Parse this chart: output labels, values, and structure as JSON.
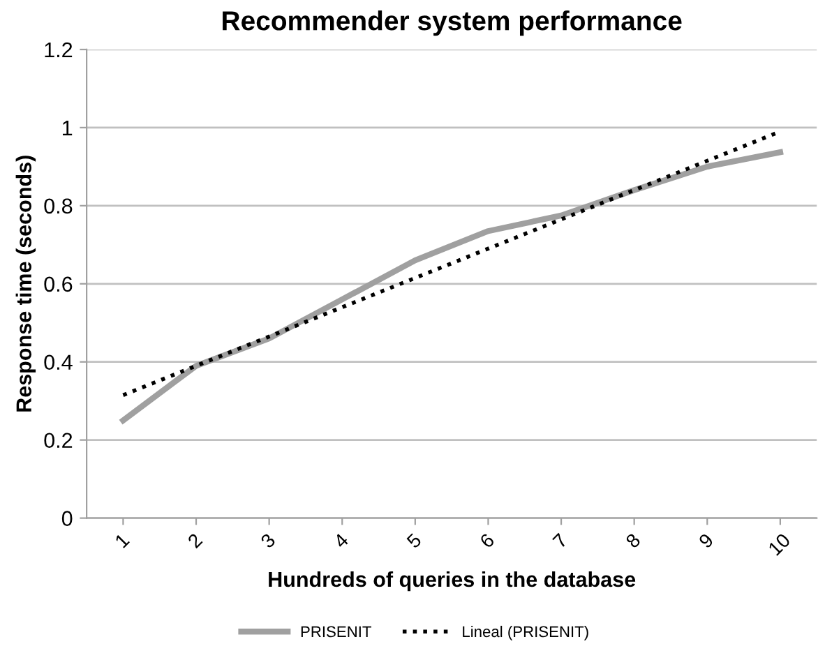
{
  "chart_data": {
    "type": "line",
    "title": "Recommender system performance",
    "xlabel": "Hundreds of queries in the database",
    "ylabel": "Response time (seconds)",
    "categories": [
      "1",
      "2",
      "3",
      "4",
      "5",
      "6",
      "7",
      "8",
      "9",
      "10"
    ],
    "series": [
      {
        "name": "PRISENIT",
        "color": "#a0a0a0",
        "line_style": "solid",
        "values": [
          0.25,
          0.39,
          0.46,
          0.56,
          0.66,
          0.735,
          0.775,
          0.84,
          0.9,
          0.937
        ]
      },
      {
        "name": "Lineal (PRISENIT)",
        "color": "#000000",
        "line_style": "dotted",
        "values": [
          0.315,
          0.39,
          0.465,
          0.54,
          0.615,
          0.69,
          0.765,
          0.84,
          0.915,
          0.99
        ]
      }
    ],
    "ylim": [
      0,
      1.2
    ],
    "yticks": [
      0,
      0.2,
      0.4,
      0.6,
      0.8,
      1,
      1.2
    ],
    "grid": "y",
    "legend": "bottom",
    "marker": "none"
  }
}
